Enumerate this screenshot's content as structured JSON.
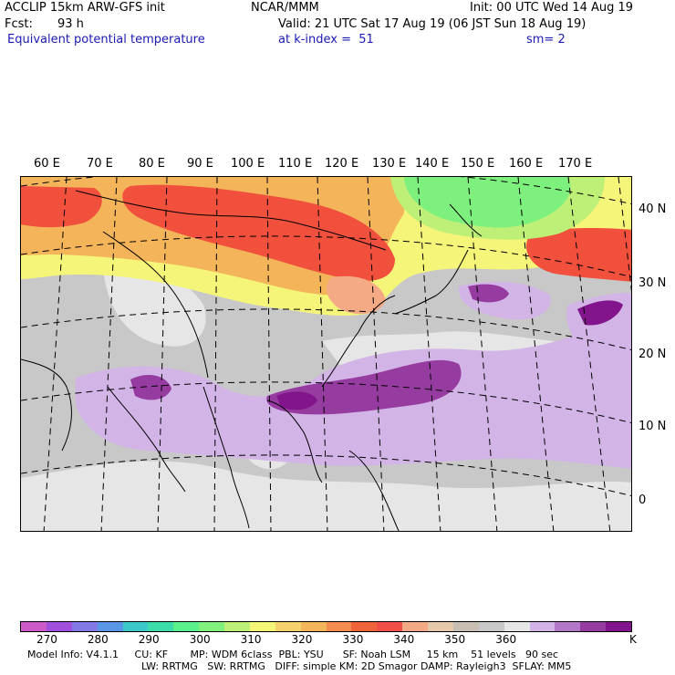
{
  "header": {
    "model_title": "ACCLIP 15km ARW-GFS init",
    "center": "NCAR/MMM",
    "init": "Init: 00 UTC Wed 14 Aug 19",
    "fcst_label": "Fcst:",
    "fcst_value": "93 h",
    "valid": "Valid: 21 UTC Sat 17 Aug 19 (06 JST Sun 18 Aug 19)",
    "field_name": "Equivalent potential temperature",
    "level": "at k-index =  51",
    "smoothing": "sm= 2"
  },
  "map": {
    "lon_labels": [
      "60 E",
      "70 E",
      "80 E",
      "90 E",
      "100 E",
      "110 E",
      "120 E",
      "130 E",
      "140 E",
      "150 E",
      "160 E",
      "170 E"
    ],
    "lat_labels": [
      "40 N",
      "30 N",
      "20 N",
      "10 N",
      "0"
    ],
    "colors": {
      "cold_green": "#7df07d",
      "yellow": "#f5f57a",
      "orange": "#f4b45a",
      "red": "#f0503c",
      "salmon": "#f4aa84",
      "gray": "#c8c8c8",
      "light_gray": "#e6e6e6",
      "light_purple": "#d2b4e6",
      "purple": "#963ca0",
      "dark_purple": "#82148c"
    }
  },
  "colorbar": {
    "colors": [
      "#cc5ac8",
      "#a050dc",
      "#8278e6",
      "#5a96e6",
      "#3cc8c8",
      "#3cdcaa",
      "#5af08c",
      "#82f07d",
      "#bef078",
      "#f5f578",
      "#f5d26e",
      "#f4b45a",
      "#f48c50",
      "#f0643c",
      "#f05046",
      "#f4aa84",
      "#e6c8aa",
      "#c8beb4",
      "#c8c8c8",
      "#e6e6e6",
      "#d2b4e6",
      "#b478c8",
      "#963ca0",
      "#82148c"
    ],
    "labels": [
      "270",
      "280",
      "290",
      "300",
      "310",
      "320",
      "330",
      "340",
      "350",
      "360"
    ],
    "unit": "K"
  },
  "footer": {
    "line1": "Model Info: V4.1.1     CU: KF       MP: WDM 6class  PBL: YSU      SF: Noah LSM     15 km    51 levels   90 sec",
    "line2": "LW: RRTMG   SW: RRTMG   DIFF: simple KM: 2D Smagor DAMP: Rayleigh3  SFLAY: MM5"
  }
}
